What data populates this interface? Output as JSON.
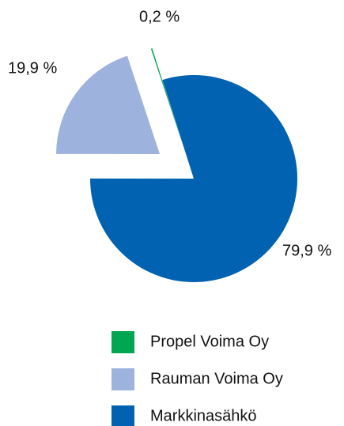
{
  "chart_data": {
    "type": "pie",
    "categories": [
      "Markkinasähkö",
      "Rauman Voima Oy",
      "Propel Voima Oy"
    ],
    "values": [
      79.9,
      19.9,
      0.2
    ],
    "value_labels": [
      "79,9 %",
      "19,9 %",
      "0,2 %"
    ],
    "colors": [
      "#0062b0",
      "#9db3de",
      "#00a651"
    ]
  }
}
